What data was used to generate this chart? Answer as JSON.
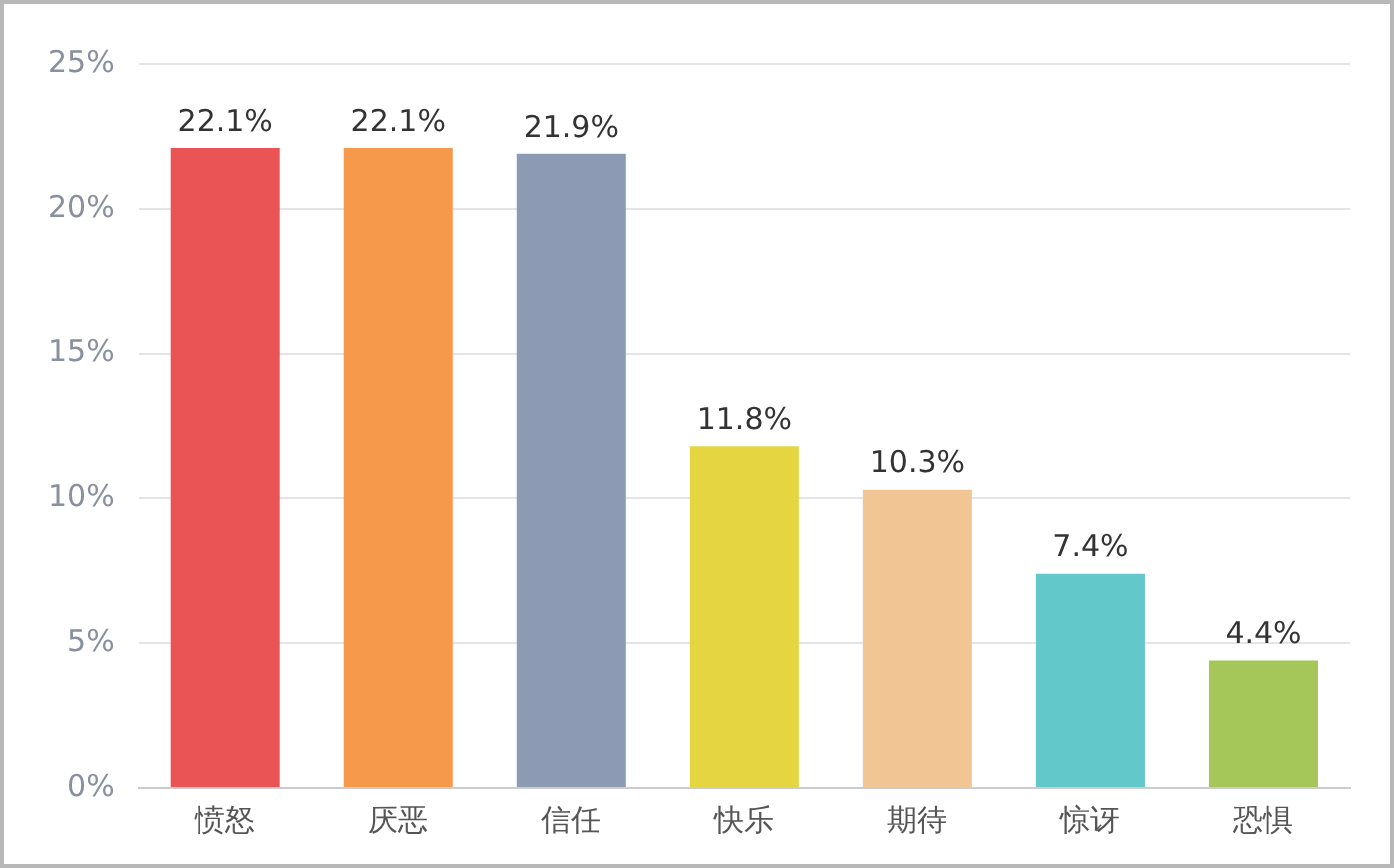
{
  "chart_data": {
    "type": "bar",
    "categories": [
      "愤怒",
      "厌恶",
      "信任",
      "快乐",
      "期待",
      "惊讶",
      "恐惧"
    ],
    "values": [
      22.1,
      22.1,
      21.9,
      11.8,
      10.3,
      7.4,
      4.4
    ],
    "colors": [
      "#eb5454",
      "#f7994a",
      "#8c9ab4",
      "#e5d540",
      "#f2c594",
      "#62c8c9",
      "#a5c75a"
    ],
    "value_labels": [
      "22.1%",
      "22.1%",
      "21.9%",
      "11.8%",
      "10.3%",
      "7.4%",
      "4.4%"
    ],
    "ylim": [
      0,
      25
    ],
    "yticks": [
      {
        "value": 0,
        "label": "0%"
      },
      {
        "value": 5,
        "label": "5%"
      },
      {
        "value": 10,
        "label": "10%"
      },
      {
        "value": 15,
        "label": "15%"
      },
      {
        "value": 20,
        "label": "20%"
      },
      {
        "value": 25,
        "label": "25%"
      }
    ],
    "grid": "y"
  }
}
